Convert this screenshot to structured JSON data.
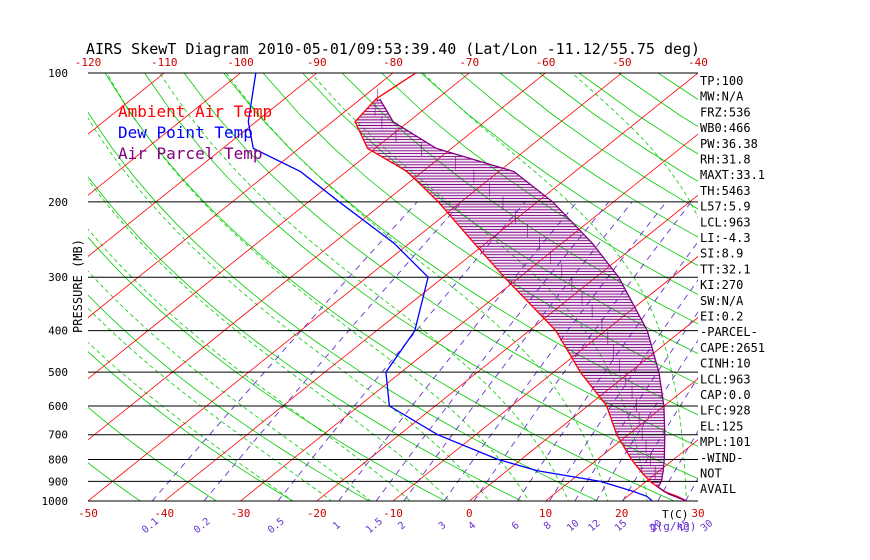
{
  "chart_data": {
    "type": "line",
    "title": "AIRS SkewT Diagram 2010-05-01/09:53:39.40 (Lat/Lon -11.12/55.75 deg)",
    "ylabel": "PRESSURE (MB)",
    "xlabel": "T(C)",
    "mixing_ratio_label": "g(g/kg)",
    "y_scale": "log",
    "ylim": [
      1000,
      100
    ],
    "bottom_temp_range": [
      -50,
      30
    ],
    "top_temp_range": [
      -120,
      -40
    ],
    "pressure_ticks": [
      100,
      200,
      300,
      400,
      500,
      600,
      700,
      800,
      900,
      1000
    ],
    "pressure_tick_labels": [
      "100",
      "200",
      "300",
      "400",
      "500",
      "600",
      "700",
      "800",
      "900",
      "1000"
    ],
    "bottom_ticks": [
      -50,
      -40,
      -30,
      -20,
      -10,
      0,
      10,
      20,
      30
    ],
    "bottom_tick_labels": [
      "-50",
      "-40",
      "-30",
      "-20",
      "-10",
      "0",
      "10",
      "20",
      "30"
    ],
    "top_ticks": [
      -120,
      -110,
      -100,
      -90,
      -80,
      -70,
      -60,
      -50,
      -40
    ],
    "top_tick_labels": [
      "-120",
      "-110",
      "-100",
      "-90",
      "-80",
      "-70",
      "-60",
      "-50",
      "-40"
    ],
    "mixing_ratio_values": [
      0.1,
      0.2,
      0.5,
      1,
      1.5,
      2,
      3,
      4,
      6,
      8,
      10,
      12,
      15,
      20,
      25,
      30
    ],
    "mixing_ratio_labels": [
      "0.1",
      "0.2",
      "0.5",
      "1",
      "1.5",
      "2",
      "3",
      "4",
      "6",
      "8",
      "10",
      "12",
      "15",
      "20",
      "25",
      "30"
    ],
    "legend": [
      {
        "label": "Ambient Air Temp",
        "color": "#ff0000"
      },
      {
        "label": "Dew Point Temp",
        "color": "#0000ff"
      },
      {
        "label": "Air Parcel Temp",
        "color": "#800080"
      }
    ],
    "legend_position": "top-left",
    "colors": {
      "isotherm": "#ff0000",
      "dry_adiabat": "#00cc00",
      "moist_adiabat": "#00cc00",
      "mixing_ratio": "#6633cc",
      "isobar": "#000000",
      "hatch": "#800080"
    },
    "series": [
      {
        "name": "Ambient Air Temp",
        "color": "#ff0000",
        "points": [
          {
            "p": 1000,
            "t": 28.5
          },
          {
            "p": 975,
            "t": 26.5
          },
          {
            "p": 950,
            "t": 24.0
          },
          {
            "p": 900,
            "t": 20.5
          },
          {
            "p": 850,
            "t": 17.5
          },
          {
            "p": 800,
            "t": 14.5
          },
          {
            "p": 700,
            "t": 8.5
          },
          {
            "p": 600,
            "t": 2.5
          },
          {
            "p": 500,
            "t": -6.5
          },
          {
            "p": 400,
            "t": -16.5
          },
          {
            "p": 300,
            "t": -32.0
          },
          {
            "p": 250,
            "t": -41.5
          },
          {
            "p": 200,
            "t": -53.0
          },
          {
            "p": 170,
            "t": -62.0
          },
          {
            "p": 150,
            "t": -71.0
          },
          {
            "p": 130,
            "t": -77.0
          },
          {
            "p": 115,
            "t": -78.0
          },
          {
            "p": 100,
            "t": -77.0
          }
        ]
      },
      {
        "name": "Dew Point Temp",
        "color": "#0000ff",
        "points": [
          {
            "p": 1000,
            "t": 24.0
          },
          {
            "p": 975,
            "t": 22.5
          },
          {
            "p": 950,
            "t": 20.0
          },
          {
            "p": 900,
            "t": 14.0
          },
          {
            "p": 850,
            "t": 4.0
          },
          {
            "p": 800,
            "t": -3.0
          },
          {
            "p": 700,
            "t": -15.0
          },
          {
            "p": 600,
            "t": -26.0
          },
          {
            "p": 500,
            "t": -32.0
          },
          {
            "p": 400,
            "t": -35.0
          },
          {
            "p": 300,
            "t": -42.0
          },
          {
            "p": 250,
            "t": -52.0
          },
          {
            "p": 200,
            "t": -66.0
          },
          {
            "p": 170,
            "t": -76.0
          },
          {
            "p": 150,
            "t": -86.0
          },
          {
            "p": 130,
            "t": -91.0
          },
          {
            "p": 100,
            "t": -98.0
          }
        ]
      },
      {
        "name": "Air Parcel Temp",
        "color": "#800080",
        "points": [
          {
            "p": 1000,
            "t": 28.5
          },
          {
            "p": 963,
            "t": 25.0
          },
          {
            "p": 928,
            "t": 22.5
          },
          {
            "p": 900,
            "t": 22.0
          },
          {
            "p": 850,
            "t": 20.5
          },
          {
            "p": 800,
            "t": 18.8
          },
          {
            "p": 700,
            "t": 14.8
          },
          {
            "p": 600,
            "t": 10.0
          },
          {
            "p": 500,
            "t": 3.8
          },
          {
            "p": 400,
            "t": -4.5
          },
          {
            "p": 300,
            "t": -17.0
          },
          {
            "p": 250,
            "t": -26.0
          },
          {
            "p": 200,
            "t": -38.0
          },
          {
            "p": 170,
            "t": -48.0
          },
          {
            "p": 150,
            "t": -62.0
          },
          {
            "p": 130,
            "t": -72.0
          },
          {
            "p": 115,
            "t": -77.5
          }
        ]
      }
    ],
    "indices": [
      "TP:100",
      "MW:N/A",
      "FRZ:536",
      "WB0:466",
      "PW:36.38",
      "RH:31.8",
      "MAXT:33.1",
      "TH:5463",
      "L57:5.9",
      "LCL:963",
      "LI:-4.3",
      "SI:8.9",
      "TT:32.1",
      "KI:270",
      "SW:N/A",
      "EI:0.2",
      "-PARCEL-",
      "CAPE:2651",
      "CINH:10",
      "LCL:963",
      "CAP:0.0",
      "LFC:928",
      "EL:125",
      "MPL:101",
      "-WIND-",
      "NOT",
      "AVAIL"
    ]
  }
}
